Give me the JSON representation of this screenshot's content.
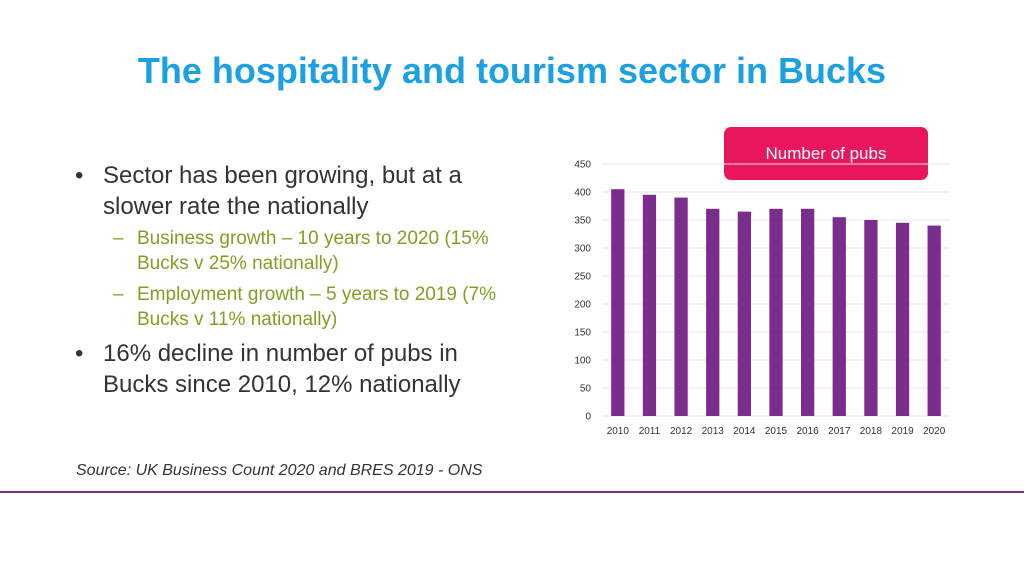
{
  "slide": {
    "title": "The hospitality and tourism sector in Bucks",
    "bullets": [
      {
        "text": "Sector has been growing, but at a slower rate the nationally",
        "subs": [
          "Business growth – 10 years to 2020 (15% Bucks v 25% nationally)",
          "Employment growth – 5 years to 2019 (7% Bucks v 11% nationally)"
        ]
      },
      {
        "text": "16% decline in number of pubs in Bucks since 2010, 12% nationally",
        "subs": []
      }
    ],
    "bullet_glyph": "•",
    "dash_glyph": "–",
    "source": "Source: UK Business Count 2020 and BRES 2019 - ONS"
  },
  "colors": {
    "title": "#1BA1E2",
    "bar": "#7B2D8E",
    "legend_bg": "#E8175D",
    "sub_text": "#7FA024",
    "rule": "#7B2D8E"
  },
  "chart_data": {
    "type": "bar",
    "legend": "Number of pubs",
    "categories": [
      "2010",
      "2011",
      "2012",
      "2013",
      "2014",
      "2015",
      "2016",
      "2017",
      "2018",
      "2019",
      "2020"
    ],
    "values": [
      405,
      395,
      390,
      370,
      365,
      370,
      370,
      355,
      350,
      345,
      340
    ],
    "ylim": [
      0,
      450
    ],
    "yticks": [
      0,
      50,
      100,
      150,
      200,
      250,
      300,
      350,
      400,
      450
    ],
    "grid": true
  }
}
